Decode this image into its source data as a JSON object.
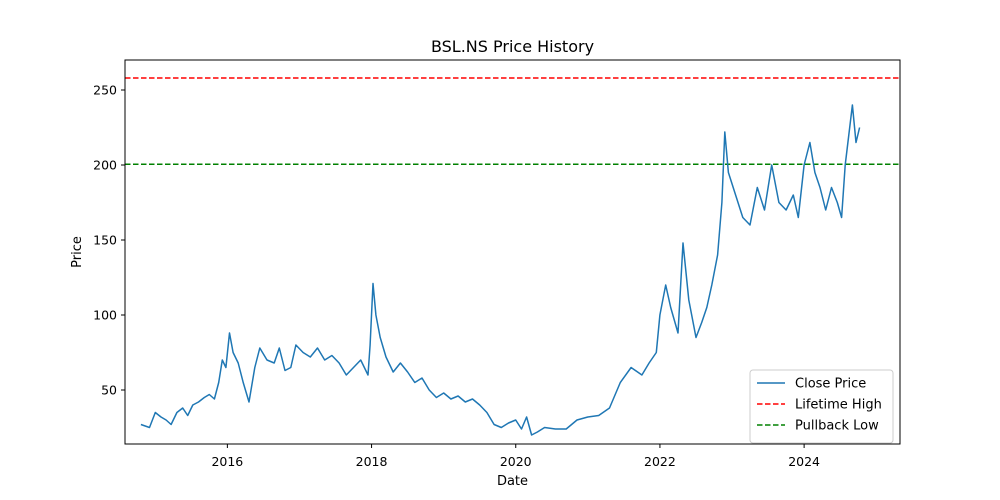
{
  "chart_data": {
    "type": "line",
    "title": "BSL.NS Price History",
    "xlabel": "Date",
    "ylabel": "Price",
    "xlim": [
      2014.58,
      2025.33
    ],
    "ylim": [
      14,
      270
    ],
    "xticks": [
      2016,
      2018,
      2020,
      2022,
      2024
    ],
    "yticks": [
      50,
      100,
      150,
      200,
      250
    ],
    "grid": false,
    "legend_position": "lower-right",
    "series": [
      {
        "name": "Close Price",
        "color": "#1f77b4",
        "style": "solid",
        "x": [
          2014.8,
          2014.92,
          2015.0,
          2015.08,
          2015.15,
          2015.22,
          2015.3,
          2015.38,
          2015.45,
          2015.52,
          2015.6,
          2015.68,
          2015.75,
          2015.82,
          2015.88,
          2015.93,
          2015.98,
          2016.03,
          2016.08,
          2016.15,
          2016.22,
          2016.3,
          2016.38,
          2016.45,
          2016.55,
          2016.65,
          2016.72,
          2016.8,
          2016.88,
          2016.95,
          2017.05,
          2017.15,
          2017.25,
          2017.35,
          2017.45,
          2017.55,
          2017.65,
          2017.75,
          2017.85,
          2017.95,
          2017.98,
          2018.02,
          2018.06,
          2018.12,
          2018.2,
          2018.3,
          2018.4,
          2018.5,
          2018.6,
          2018.7,
          2018.8,
          2018.9,
          2019.0,
          2019.1,
          2019.2,
          2019.3,
          2019.4,
          2019.5,
          2019.6,
          2019.7,
          2019.8,
          2019.9,
          2020.0,
          2020.08,
          2020.15,
          2020.22,
          2020.3,
          2020.4,
          2020.55,
          2020.7,
          2020.85,
          2021.0,
          2021.15,
          2021.3,
          2021.45,
          2021.6,
          2021.75,
          2021.85,
          2021.95,
          2022.0,
          2022.08,
          2022.15,
          2022.25,
          2022.32,
          2022.4,
          2022.5,
          2022.58,
          2022.65,
          2022.72,
          2022.8,
          2022.86,
          2022.9,
          2022.95,
          2023.05,
          2023.15,
          2023.25,
          2023.35,
          2023.45,
          2023.55,
          2023.65,
          2023.75,
          2023.85,
          2023.92,
          2024.0,
          2024.08,
          2024.15,
          2024.22,
          2024.3,
          2024.38,
          2024.46,
          2024.52,
          2024.57,
          2024.62,
          2024.67,
          2024.72,
          2024.77
        ],
        "y": [
          27,
          25,
          35,
          32,
          30,
          27,
          35,
          38,
          33,
          40,
          42,
          45,
          47,
          44,
          55,
          70,
          65,
          88,
          75,
          68,
          55,
          42,
          65,
          78,
          70,
          68,
          78,
          63,
          65,
          80,
          75,
          72,
          78,
          70,
          73,
          68,
          60,
          65,
          70,
          60,
          80,
          121,
          100,
          85,
          72,
          62,
          68,
          62,
          55,
          58,
          50,
          45,
          48,
          44,
          46,
          42,
          44,
          40,
          35,
          27,
          25,
          28,
          30,
          24,
          32,
          20,
          22,
          25,
          24,
          24,
          30,
          32,
          33,
          38,
          55,
          65,
          60,
          68,
          75,
          100,
          120,
          105,
          88,
          148,
          110,
          85,
          95,
          105,
          120,
          140,
          175,
          222,
          195,
          180,
          165,
          160,
          185,
          170,
          200,
          175,
          170,
          180,
          165,
          200,
          215,
          195,
          185,
          170,
          185,
          175,
          165,
          200,
          220,
          240,
          215,
          225
        ]
      },
      {
        "name": "Lifetime High",
        "color": "#ff0000",
        "style": "dashed",
        "value": 258
      },
      {
        "name": "Pullback Low",
        "color": "#008000",
        "style": "dashed",
        "value": 200.5
      }
    ]
  }
}
